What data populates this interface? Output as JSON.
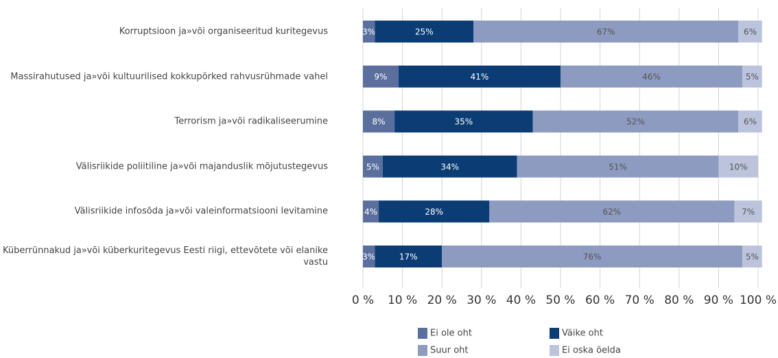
{
  "chart_data": {
    "type": "stacked-barh",
    "categories": [
      "Korruptsioon ja»või organiseeritud kuritegevus",
      "Massirahutused ja»või kultuurilised kokkupõrked rahvusrühmade vahel",
      "Terrorism ja»või radikaliseerumine",
      "Välisriikide poliitiline ja»või majanduslik mõjutustegevus",
      "Välisriikide infosõda ja»või valeinformatsiooni levitamine",
      "Küberrünnakud  ja»või küberkuritegevus Eesti riigi, ettevõtete või elanike vastu"
    ],
    "series": [
      {
        "name": "Ei ole oht",
        "color": "#5a6f9e",
        "values": [
          3,
          9,
          8,
          5,
          4,
          3
        ],
        "value_labels": [
          "3%",
          "9%",
          "8%",
          "5%",
          "4%",
          "3%"
        ]
      },
      {
        "name": "Väike oht",
        "color": "#0b3d74",
        "values": [
          25,
          41,
          35,
          34,
          28,
          17
        ],
        "value_labels": [
          "25%",
          "41%",
          "35%",
          "34%",
          "28%",
          "17%"
        ]
      },
      {
        "name": "Suur oht",
        "color": "#8d9bc1",
        "values": [
          67,
          46,
          52,
          51,
          62,
          76
        ],
        "value_labels": [
          "67%",
          "46%",
          "52%",
          "51%",
          "62%",
          "76%"
        ]
      },
      {
        "name": "Ei oska öelda",
        "color": "#bcc4dd",
        "values": [
          6,
          5,
          6,
          10,
          7,
          5
        ],
        "value_labels": [
          "6%",
          "5%",
          "6%",
          "10%",
          "7%",
          "5%"
        ]
      }
    ],
    "xlim": [
      0,
      100
    ],
    "xticks": [
      {
        "value": 0,
        "label": "0 %"
      },
      {
        "value": 10,
        "label": "10 %"
      },
      {
        "value": 20,
        "label": "20 %"
      },
      {
        "value": 30,
        "label": "30 %"
      },
      {
        "value": 40,
        "label": "40 %"
      },
      {
        "value": 50,
        "label": "50 %"
      },
      {
        "value": 60,
        "label": "60 %"
      },
      {
        "value": 70,
        "label": "70 %"
      },
      {
        "value": 80,
        "label": "80 %"
      },
      {
        "value": 90,
        "label": "90 %"
      },
      {
        "value": 100,
        "label": "100 %"
      }
    ],
    "grid": true
  }
}
